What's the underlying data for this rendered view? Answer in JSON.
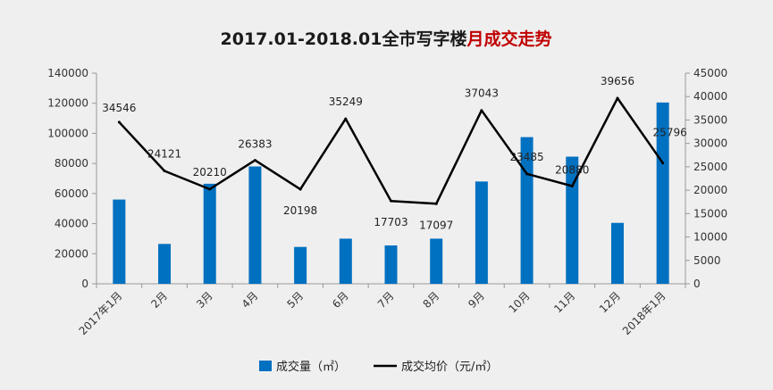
{
  "chart_data": {
    "type": "bar+line",
    "title_main": "2017.01-2018.01全市写字楼",
    "title_highlight": "月成交走势",
    "categories": [
      "2017年1月",
      "2月",
      "3月",
      "4月",
      "5月",
      "6月",
      "7月",
      "8月",
      "9月",
      "10月",
      "11月",
      "12月",
      "2018年1月"
    ],
    "series": [
      {
        "name": "成交量（㎡）",
        "type": "bar",
        "axis": "left",
        "color": "#0070c0",
        "values": [
          56000,
          26500,
          66500,
          78000,
          24500,
          30000,
          25500,
          30000,
          68000,
          97500,
          84500,
          40500,
          120500
        ]
      },
      {
        "name": "成交均价（元/㎡）",
        "type": "line",
        "axis": "right",
        "color": "#000000",
        "values": [
          34546,
          24121,
          20210,
          26383,
          20198,
          35249,
          17703,
          17097,
          37043,
          23485,
          20880,
          39656,
          25796
        ],
        "labels": [
          "34546",
          "24121",
          "20210",
          "26383",
          "20198",
          "35249",
          "17703",
          "17097",
          "37043",
          "23485",
          "20880",
          "39656",
          "25796"
        ]
      }
    ],
    "y_left": {
      "min": 0,
      "max": 140000,
      "step": 20000,
      "ticks": [
        "0",
        "20000",
        "40000",
        "60000",
        "80000",
        "100000",
        "120000",
        "140000"
      ]
    },
    "y_right": {
      "min": 0,
      "max": 45000,
      "step": 5000,
      "ticks": [
        "0",
        "5000",
        "10000",
        "15000",
        "20000",
        "25000",
        "30000",
        "35000",
        "40000",
        "45000"
      ]
    },
    "legend": {
      "position": "bottom",
      "bar_label": "成交量（㎡）",
      "line_label": "成交均价（元/㎡）"
    },
    "grid": false
  }
}
